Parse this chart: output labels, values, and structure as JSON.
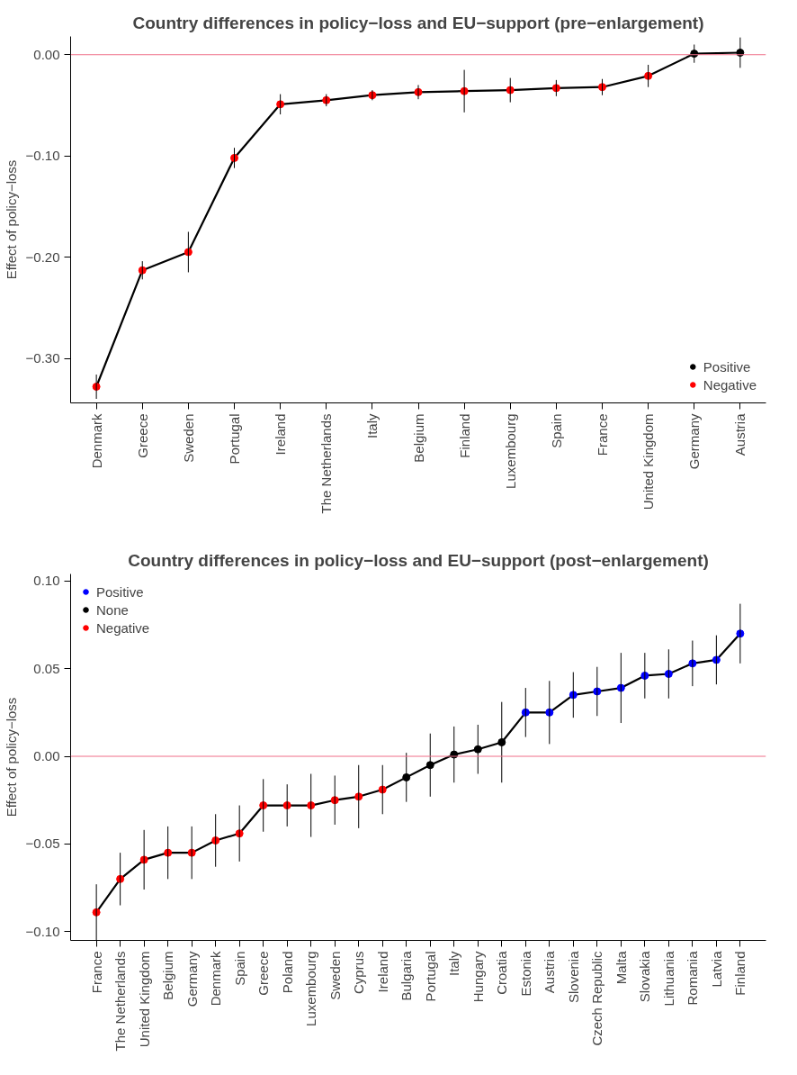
{
  "chart_data": [
    {
      "type": "line",
      "title": "Country differences in policy−loss and EU−support (pre−enlargement)",
      "ylabel": "Effect of policy−loss",
      "categories": [
        "Denmark",
        "Greece",
        "Sweden",
        "Portugal",
        "Ireland",
        "The Netherlands",
        "Italy",
        "Belgium",
        "Finland",
        "Luxembourg",
        "Spain",
        "France",
        "United Kingdom",
        "Germany",
        "Austria"
      ],
      "ylim": [
        -0.344,
        0.018
      ],
      "yticks": [
        {
          "value": -0.3,
          "label": "−0.30"
        },
        {
          "value": -0.2,
          "label": "−0.20"
        },
        {
          "value": -0.1,
          "label": "−0.10"
        },
        {
          "value": 0,
          "label": "0.00"
        }
      ],
      "grid": false,
      "legend": "bottom right",
      "line_style": "solid",
      "ref_lines": [
        {
          "axis": "y",
          "value": 0,
          "label": null,
          "color": "#f0708a"
        }
      ],
      "series": [
        {
          "marker": "none",
          "color": "#000000",
          "values": [
            -0.328,
            -0.213,
            -0.195,
            -0.102,
            -0.049,
            -0.045,
            -0.04,
            -0.037,
            -0.036,
            -0.035,
            -0.033,
            -0.032,
            -0.021,
            0.001,
            0.002
          ],
          "errors": [
            0.012,
            0.009,
            0.02,
            0.01,
            0.01,
            0.006,
            0.005,
            0.007,
            0.021,
            0.012,
            0.008,
            0.008,
            0.011,
            0.009,
            0.015
          ]
        },
        {
          "type": "scatter",
          "marker": "circle",
          "name": "Positive",
          "color": "#000000",
          "values": [
            null,
            null,
            null,
            null,
            null,
            null,
            null,
            null,
            null,
            null,
            null,
            null,
            null,
            0.001,
            0.002
          ]
        },
        {
          "type": "scatter",
          "marker": "circle",
          "name": "Negative",
          "color": "#ff0000",
          "values": [
            -0.328,
            -0.213,
            -0.195,
            -0.102,
            -0.049,
            -0.045,
            -0.04,
            -0.037,
            -0.036,
            -0.035,
            -0.033,
            -0.032,
            -0.021,
            null,
            null
          ]
        }
      ]
    },
    {
      "type": "line",
      "title": "Country differences in policy−loss and EU−support (post−enlargement)",
      "ylabel": "Effect of policy−loss",
      "categories": [
        "France",
        "The Netherlands",
        "United Kingdom",
        "Belgium",
        "Germany",
        "Denmark",
        "Spain",
        "Greece",
        "Poland",
        "Luxembourg",
        "Sweden",
        "Cyprus",
        "Ireland",
        "Bulgaria",
        "Portugal",
        "Italy",
        "Hungary",
        "Croatia",
        "Estonia",
        "Austria",
        "Slovenia",
        "Czech Republic",
        "Malta",
        "Slovakia",
        "Lithuania",
        "Romania",
        "Latvia",
        "Finland"
      ],
      "ylim": [
        -0.105,
        0.104
      ],
      "yticks": [
        {
          "value": -0.1,
          "label": "−0.10"
        },
        {
          "value": -0.05,
          "label": "−0.05"
        },
        {
          "value": 0,
          "label": "0.00"
        },
        {
          "value": 0.05,
          "label": "0.05"
        },
        {
          "value": 0.1,
          "label": "0.10"
        }
      ],
      "grid": false,
      "legend": "top left",
      "line_style": "solid",
      "ref_lines": [
        {
          "axis": "y",
          "value": 0,
          "label": null,
          "color": "#f0708a"
        }
      ],
      "series": [
        {
          "marker": "none",
          "color": "#000000",
          "values": [
            -0.089,
            -0.07,
            -0.059,
            -0.055,
            -0.055,
            -0.048,
            -0.044,
            -0.028,
            -0.028,
            -0.028,
            -0.025,
            -0.023,
            -0.019,
            -0.012,
            -0.005,
            0.001,
            0.004,
            0.008,
            0.025,
            0.025,
            0.035,
            0.037,
            0.039,
            0.046,
            0.047,
            0.053,
            0.055,
            0.07
          ],
          "errors": [
            0.016,
            0.015,
            0.017,
            0.015,
            0.015,
            0.015,
            0.016,
            0.015,
            0.012,
            0.018,
            0.014,
            0.018,
            0.014,
            0.014,
            0.018,
            0.016,
            0.014,
            0.023,
            0.014,
            0.018,
            0.013,
            0.014,
            0.02,
            0.013,
            0.014,
            0.013,
            0.014,
            0.017
          ]
        },
        {
          "type": "scatter",
          "marker": "circle",
          "name": "Positive",
          "color": "#0000ff",
          "values": [
            null,
            null,
            null,
            null,
            null,
            null,
            null,
            null,
            null,
            null,
            null,
            null,
            null,
            null,
            null,
            null,
            null,
            null,
            0.025,
            0.025,
            0.035,
            0.037,
            0.039,
            0.046,
            0.047,
            0.053,
            0.055,
            0.07
          ]
        },
        {
          "type": "scatter",
          "marker": "circle",
          "name": "None",
          "color": "#000000",
          "values": [
            null,
            null,
            null,
            null,
            null,
            null,
            null,
            null,
            null,
            null,
            null,
            null,
            null,
            -0.012,
            -0.005,
            0.001,
            0.004,
            0.008,
            null,
            null,
            null,
            null,
            null,
            null,
            null,
            null,
            null,
            null
          ]
        },
        {
          "type": "scatter",
          "marker": "circle",
          "name": "Negative",
          "color": "#ff0000",
          "values": [
            -0.089,
            -0.07,
            -0.059,
            -0.055,
            -0.055,
            -0.048,
            -0.044,
            -0.028,
            -0.028,
            -0.028,
            -0.025,
            -0.023,
            -0.019,
            null,
            null,
            null,
            null,
            null,
            null,
            null,
            null,
            null,
            null,
            null,
            null,
            null,
            null,
            null
          ]
        }
      ]
    }
  ]
}
